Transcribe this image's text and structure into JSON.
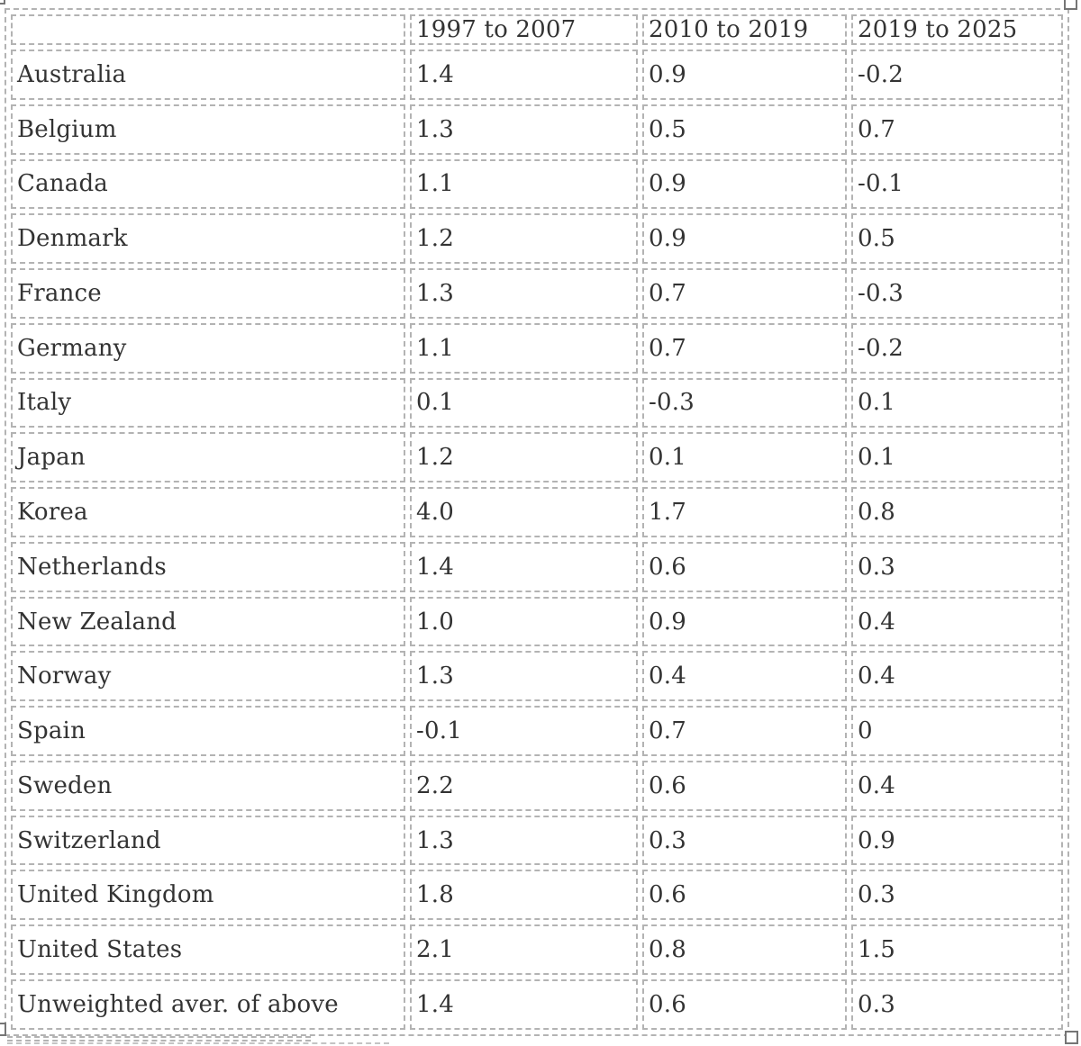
{
  "chart_data": {
    "type": "table",
    "columns": [
      "",
      "1997 to 2007",
      "2010 to 2019",
      "2019 to 2025"
    ],
    "rows": [
      {
        "label": "Australia",
        "values": [
          "1.4",
          "0.9",
          "-0.2"
        ]
      },
      {
        "label": "Belgium",
        "values": [
          "1.3",
          "0.5",
          "0.7"
        ]
      },
      {
        "label": "Canada",
        "values": [
          "1.1",
          "0.9",
          "-0.1"
        ]
      },
      {
        "label": "Denmark",
        "values": [
          "1.2",
          "0.9",
          "0.5"
        ]
      },
      {
        "label": "France",
        "values": [
          "1.3",
          "0.7",
          "-0.3"
        ]
      },
      {
        "label": "Germany",
        "values": [
          "1.1",
          "0.7",
          "-0.2"
        ]
      },
      {
        "label": "Italy",
        "values": [
          "0.1",
          "-0.3",
          "0.1"
        ]
      },
      {
        "label": "Japan",
        "values": [
          "1.2",
          "0.1",
          "0.1"
        ]
      },
      {
        "label": "Korea",
        "values": [
          "4.0",
          "1.7",
          "0.8"
        ]
      },
      {
        "label": "Netherlands",
        "values": [
          "1.4",
          "0.6",
          "0.3"
        ]
      },
      {
        "label": "New Zealand",
        "values": [
          "1.0",
          "0.9",
          "0.4"
        ]
      },
      {
        "label": "Norway",
        "values": [
          "1.3",
          "0.4",
          "0.4"
        ]
      },
      {
        "label": "Spain",
        "values": [
          "-0.1",
          "0.7",
          "0"
        ]
      },
      {
        "label": "Sweden",
        "values": [
          "2.2",
          "0.6",
          "0.4"
        ]
      },
      {
        "label": "Switzerland",
        "values": [
          "1.3",
          "0.3",
          "0.9"
        ]
      },
      {
        "label": "United Kingdom",
        "values": [
          "1.8",
          "0.6",
          "0.3"
        ]
      },
      {
        "label": "United States",
        "values": [
          "2.1",
          "0.8",
          "1.5"
        ]
      },
      {
        "label": "Unweighted aver. of above",
        "values": [
          "1.4",
          "0.6",
          "0.3"
        ]
      }
    ],
    "layout": {
      "grid": "dashed",
      "header_row": true,
      "first_column_is_label": true
    }
  },
  "colors": {
    "text": "#333333",
    "cell_border": "#b3b3b3",
    "selection_handle_border": "#757575",
    "background": "#ffffff"
  },
  "selection": {
    "table_selected": true,
    "handles": [
      "top-left",
      "top-right",
      "bottom-left",
      "bottom-right"
    ]
  }
}
